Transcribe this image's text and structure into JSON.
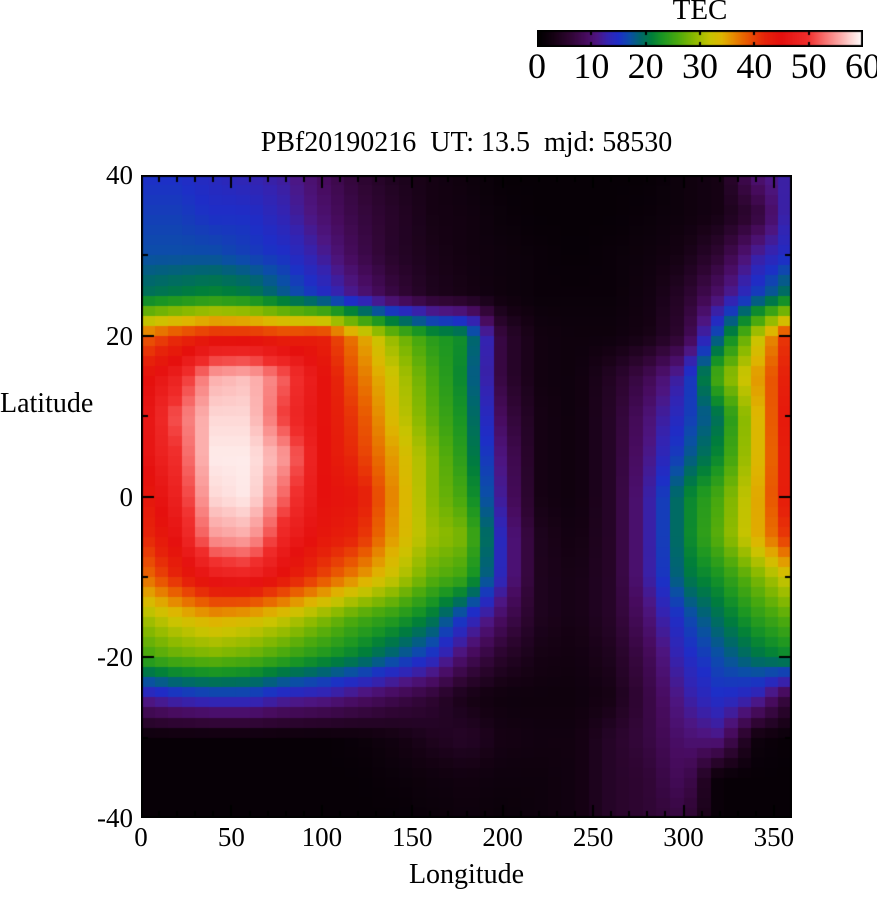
{
  "chart_data": {
    "type": "heatmap",
    "title": "PBf20190216  UT: 13.5  mjd: 58530",
    "x_axis": {
      "label": "Longitude",
      "major_ticks": [
        0,
        50,
        100,
        150,
        200,
        250,
        300,
        350
      ],
      "minor_step": 10,
      "range": [
        0,
        360
      ]
    },
    "y_axis": {
      "label": "Latitude",
      "major_ticks": [
        40,
        20,
        0,
        -20,
        -40
      ],
      "minor_step": 10,
      "range": [
        -40,
        40
      ]
    },
    "colorbar": {
      "title": "TEC",
      "ticks": [
        0,
        10,
        20,
        30,
        40,
        50,
        60
      ],
      "range": [
        0,
        60
      ]
    },
    "grid": {
      "lon": [
        0,
        20,
        40,
        60,
        80,
        100,
        120,
        140,
        160,
        180,
        200,
        220,
        240,
        260,
        280,
        300,
        320,
        340,
        360
      ],
      "lat": [
        40,
        35,
        30,
        25,
        20,
        15,
        10,
        5,
        0,
        -5,
        -10,
        -15,
        -20,
        -25,
        -30,
        -35,
        -40
      ],
      "tec": [
        [
          15,
          15,
          14,
          13,
          12,
          9,
          6,
          4,
          3,
          2,
          1,
          1,
          1,
          1,
          1,
          2,
          3,
          10,
          13
        ],
        [
          16,
          16,
          15,
          15,
          13,
          10,
          7,
          5,
          3,
          2.5,
          1.5,
          1,
          1,
          1,
          1.5,
          2,
          3,
          6,
          14
        ],
        [
          17,
          17,
          17,
          16,
          15,
          12,
          8,
          5,
          3.5,
          2.5,
          2,
          1.5,
          1,
          1.5,
          2,
          3,
          6,
          12,
          15
        ],
        [
          20,
          21,
          22,
          21,
          18,
          15,
          11,
          7,
          4,
          3,
          2,
          1.5,
          1.5,
          1.5,
          2.5,
          5,
          10,
          16,
          21
        ],
        [
          38,
          41,
          43,
          43,
          42,
          43,
          36,
          29,
          24,
          22,
          6,
          2.5,
          2,
          2,
          3,
          6,
          18,
          31,
          43
        ],
        [
          44,
          48,
          56,
          57,
          52,
          45,
          38,
          32,
          26,
          21,
          6,
          2.5,
          2,
          4.5,
          8,
          13,
          27,
          35,
          44
        ],
        [
          45,
          52,
          58,
          58,
          50,
          45,
          40,
          33,
          27,
          22,
          8,
          3,
          2,
          5,
          10,
          15,
          20,
          33,
          46
        ],
        [
          45,
          50,
          59,
          59,
          55,
          45,
          41,
          35,
          29,
          23,
          10,
          3,
          2,
          5,
          11,
          17,
          22,
          33,
          45
        ],
        [
          43,
          48,
          58,
          59,
          52,
          45,
          44,
          36,
          29,
          25,
          11,
          3,
          2,
          5,
          12,
          21,
          26,
          34,
          45
        ],
        [
          41,
          46,
          55,
          56,
          48,
          44,
          42,
          35,
          30,
          28,
          13,
          4,
          2.5,
          5,
          12,
          21,
          27,
          34,
          42
        ],
        [
          37,
          42,
          47,
          48,
          44,
          40,
          36,
          32,
          27,
          25,
          13,
          4,
          3,
          5,
          12,
          20,
          23,
          28,
          33
        ],
        [
          30,
          33,
          35,
          34,
          32,
          29,
          26,
          24,
          21,
          15,
          9,
          4,
          3,
          5,
          10,
          16,
          20,
          24,
          27
        ],
        [
          25,
          27,
          28,
          27,
          25,
          23,
          21,
          18,
          15,
          9,
          5,
          3,
          2.5,
          4,
          8,
          14,
          17,
          20,
          22
        ],
        [
          12,
          14,
          15,
          15,
          13,
          12,
          10,
          8,
          6,
          3,
          2,
          2,
          2,
          3,
          7,
          12,
          15,
          13,
          6
        ],
        [
          1,
          1,
          1,
          1,
          1,
          1,
          1.5,
          2.5,
          4,
          5,
          3,
          2.5,
          2.5,
          5,
          7,
          10,
          11,
          2,
          1
        ],
        [
          1,
          1,
          1,
          1,
          1,
          1,
          1,
          1.5,
          2,
          2.5,
          2,
          2,
          2.5,
          5,
          6,
          9,
          1,
          1,
          1
        ],
        [
          1,
          1,
          1,
          1,
          1,
          1,
          1,
          1,
          1.5,
          2,
          1.5,
          2,
          2.5,
          5,
          6,
          7,
          1,
          1,
          1
        ]
      ]
    },
    "colormap_stops": [
      [
        0,
        0,
        0,
        0
      ],
      [
        3,
        22,
        2,
        20
      ],
      [
        6,
        48,
        6,
        52
      ],
      [
        9,
        72,
        12,
        95
      ],
      [
        11,
        78,
        22,
        130
      ],
      [
        13,
        52,
        36,
        178
      ],
      [
        15,
        30,
        46,
        200
      ],
      [
        17,
        12,
        78,
        168
      ],
      [
        19,
        0,
        104,
        108
      ],
      [
        21,
        0,
        126,
        60
      ],
      [
        23,
        26,
        150,
        36
      ],
      [
        26,
        76,
        170,
        14
      ],
      [
        29,
        140,
        186,
        0
      ],
      [
        32,
        202,
        196,
        0
      ],
      [
        34,
        222,
        182,
        0
      ],
      [
        36,
        230,
        142,
        0
      ],
      [
        38,
        233,
        102,
        0
      ],
      [
        40,
        233,
        66,
        6
      ],
      [
        42,
        231,
        36,
        10
      ],
      [
        45,
        229,
        16,
        14
      ],
      [
        50,
        241,
        47,
        45
      ],
      [
        53,
        248,
        112,
        110
      ],
      [
        56,
        252,
        172,
        170
      ],
      [
        58,
        254,
        216,
        214
      ],
      [
        60,
        255,
        255,
        255
      ]
    ]
  }
}
